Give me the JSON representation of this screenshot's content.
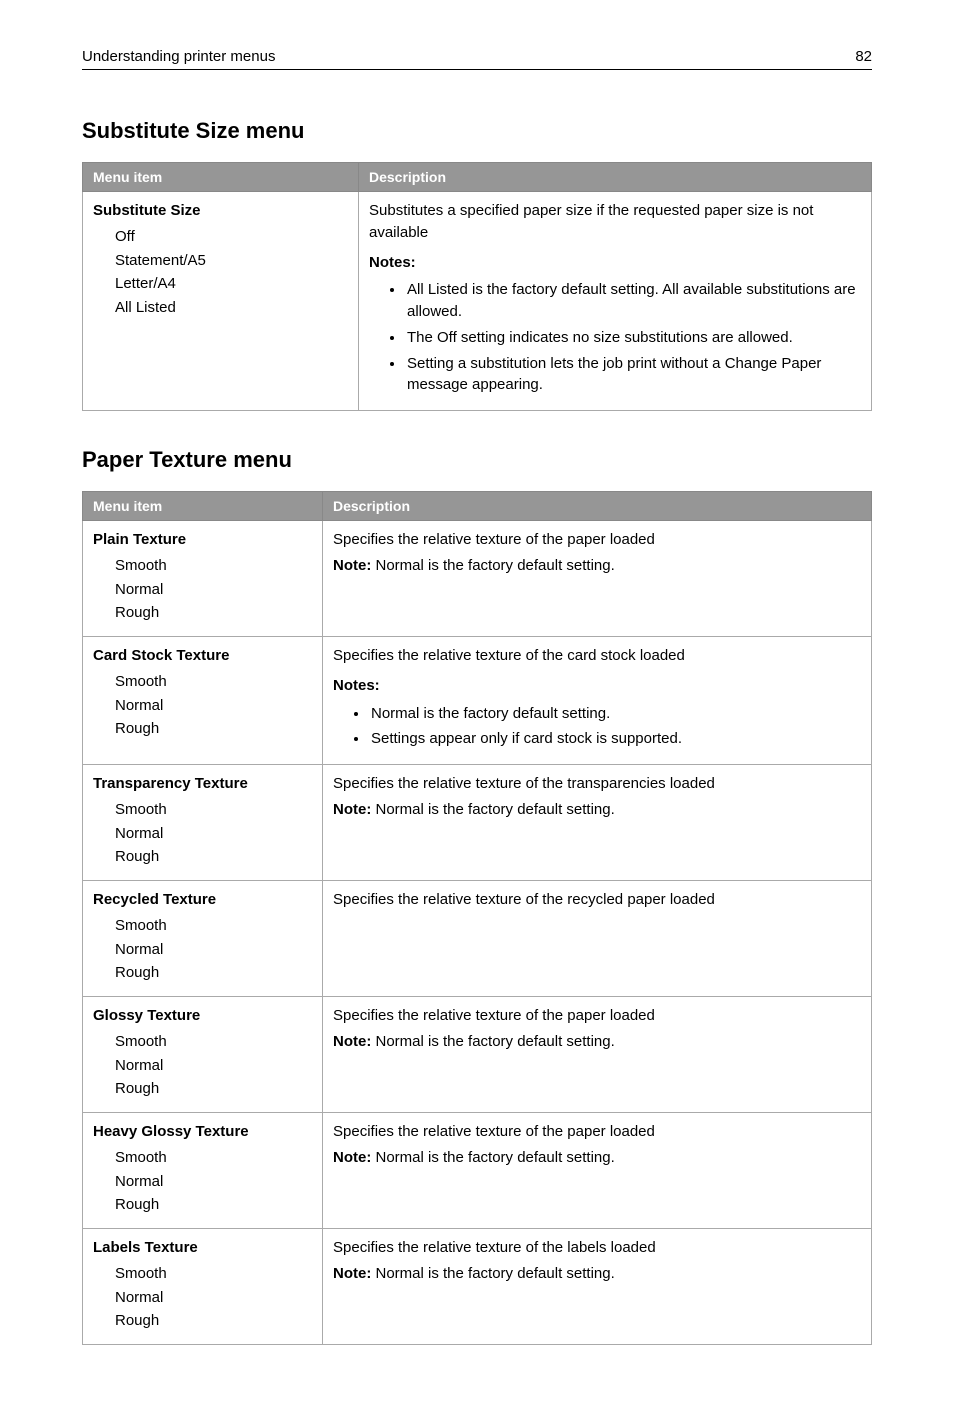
{
  "header": {
    "title": "Understanding printer menus",
    "page_number": "82"
  },
  "section1": {
    "title": "Substitute Size menu",
    "columns": {
      "menu_item": "Menu item",
      "description": "Description"
    },
    "row": {
      "name": "Substitute Size",
      "options": [
        "Off",
        "Statement/A5",
        "Letter/A4",
        "All Listed"
      ],
      "desc": "Substitutes a specified paper size if the requested paper size is not available",
      "notes_label": "Notes:",
      "notes": [
        "All Listed is the factory default setting. All available substitutions are allowed.",
        "The Off setting indicates no size substitutions are allowed.",
        "Setting a substitution lets the job print without a Change Paper message appearing."
      ]
    }
  },
  "section2": {
    "title": "Paper Texture menu",
    "columns": {
      "menu_item": "Menu item",
      "description": "Description"
    },
    "rows": [
      {
        "name": "Plain Texture",
        "options": [
          "Smooth",
          "Normal",
          "Rough"
        ],
        "desc": "Specifies the relative texture of the paper loaded",
        "note_label": "Note:",
        "note_text": " Normal is the factory default setting."
      },
      {
        "name": "Card Stock Texture",
        "options": [
          "Smooth",
          "Normal",
          "Rough"
        ],
        "desc": "Specifies the relative texture of the card stock loaded",
        "notes_label": "Notes:",
        "notes": [
          "Normal is the factory default setting.",
          "Settings appear only if card stock is supported."
        ]
      },
      {
        "name": "Transparency Texture",
        "options": [
          "Smooth",
          "Normal",
          "Rough"
        ],
        "desc": "Specifies the relative texture of the transparencies loaded",
        "note_label": "Note:",
        "note_text": " Normal is the factory default setting."
      },
      {
        "name": "Recycled Texture",
        "options": [
          "Smooth",
          "Normal",
          "Rough"
        ],
        "desc": "Specifies the relative texture of the recycled paper loaded"
      },
      {
        "name": "Glossy Texture",
        "options": [
          "Smooth",
          "Normal",
          "Rough"
        ],
        "desc": "Specifies the relative texture of the paper loaded",
        "note_label": "Note:",
        "note_text": " Normal is the factory default setting."
      },
      {
        "name": "Heavy Glossy Texture",
        "options": [
          "Smooth",
          "Normal",
          "Rough"
        ],
        "desc": "Specifies the relative texture of the paper loaded",
        "note_label": "Note:",
        "note_text": " Normal is the factory default setting."
      },
      {
        "name": "Labels Texture",
        "options": [
          "Smooth",
          "Normal",
          "Rough"
        ],
        "desc": "Specifies the relative texture of the labels loaded",
        "note_label": "Note:",
        "note_text": " Normal is the factory default setting."
      }
    ]
  }
}
